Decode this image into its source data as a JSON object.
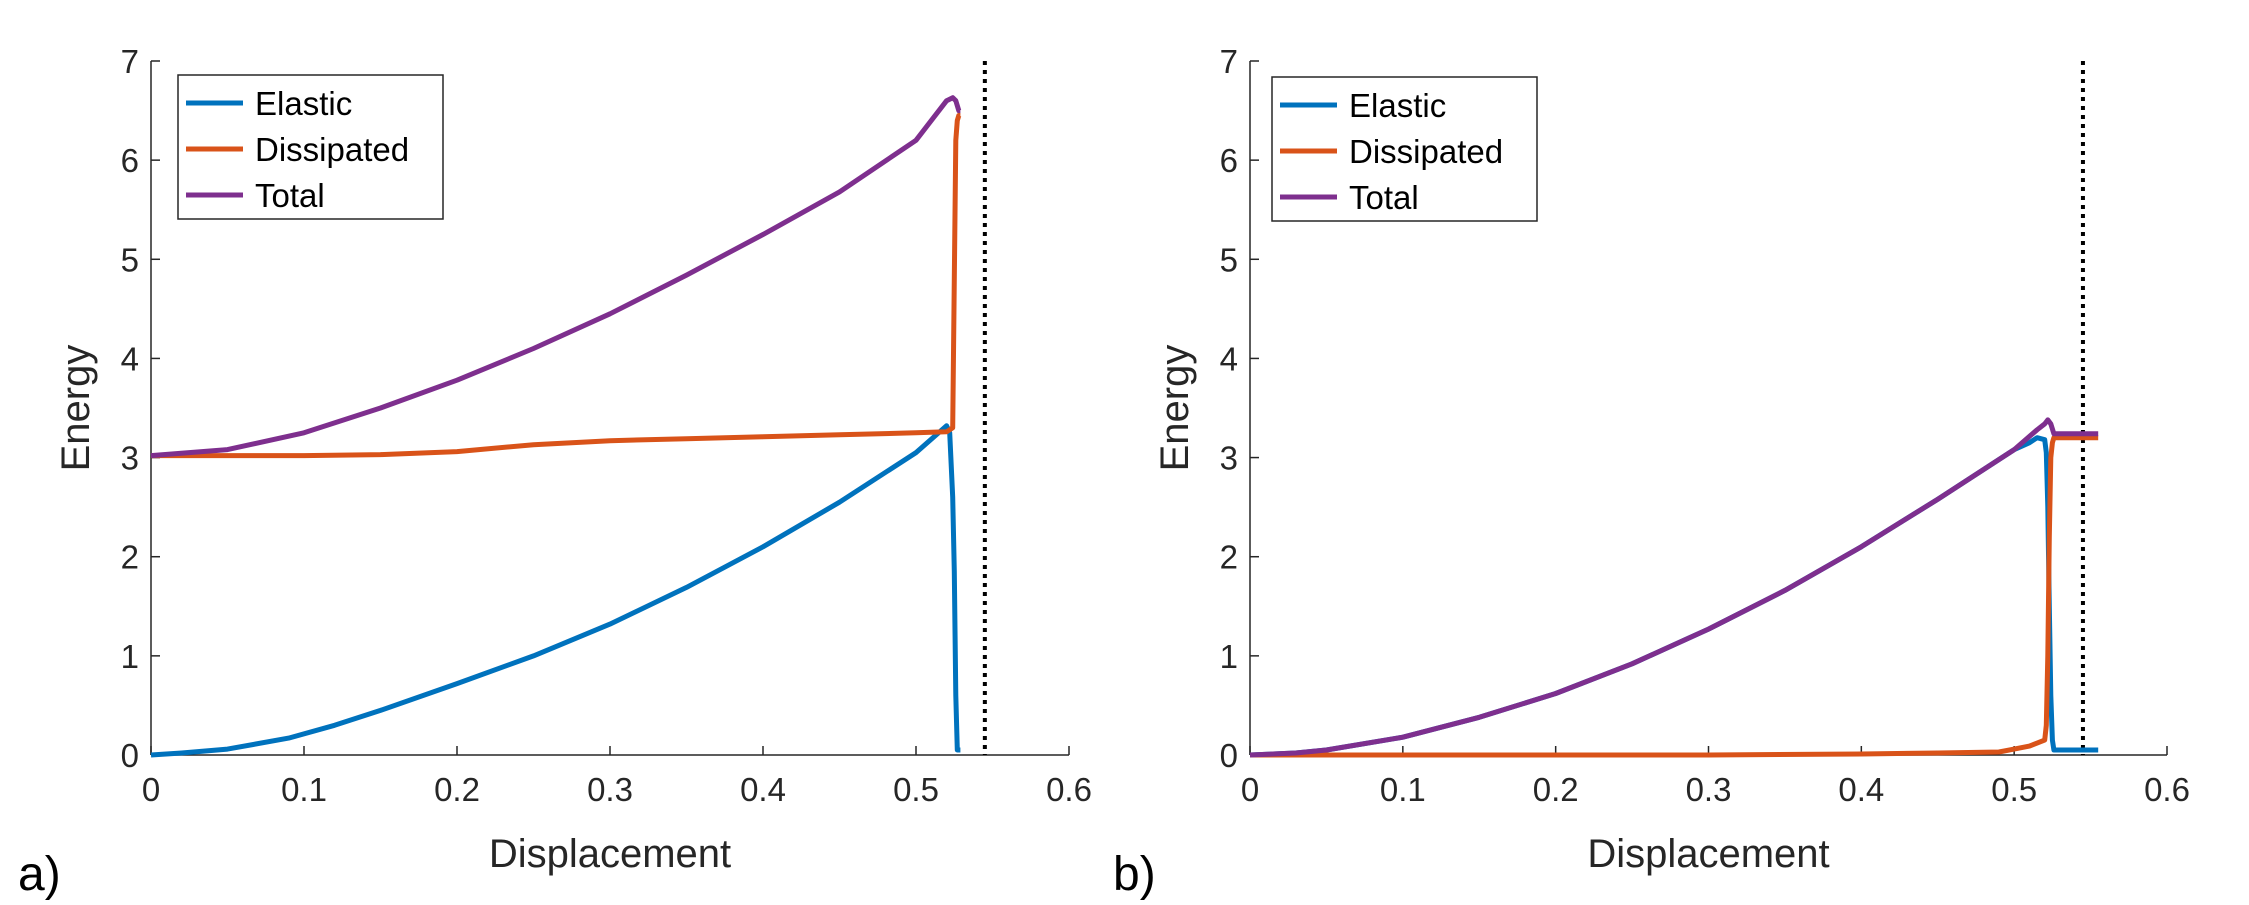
{
  "chart_data": [
    {
      "type": "line",
      "panel_label": "a)",
      "xlabel": "Displacement",
      "ylabel": "Energy",
      "xlim": [
        0,
        0.6
      ],
      "ylim": [
        0,
        7
      ],
      "xticks": [
        "0",
        "0.1",
        "0.2",
        "0.3",
        "0.4",
        "0.5",
        "0.6"
      ],
      "yticks": [
        "0",
        "1",
        "2",
        "3",
        "4",
        "5",
        "6",
        "7"
      ],
      "grid": false,
      "legend_position": "top-left",
      "reference_line": {
        "style": "dotted",
        "color": "#000000",
        "x": 0.545
      },
      "series": [
        {
          "name": "Elastic",
          "color": "#0072BD",
          "x": [
            0,
            0.02,
            0.05,
            0.09,
            0.12,
            0.15,
            0.2,
            0.25,
            0.3,
            0.35,
            0.4,
            0.45,
            0.5,
            0.52,
            0.522,
            0.524,
            0.525,
            0.526,
            0.527,
            0.529
          ],
          "y": [
            0,
            0.02,
            0.06,
            0.17,
            0.3,
            0.45,
            0.72,
            1.0,
            1.32,
            1.69,
            2.1,
            2.55,
            3.05,
            3.32,
            3.25,
            2.6,
            1.85,
            0.6,
            0.05,
            0.05
          ]
        },
        {
          "name": "Dissipated",
          "color": "#D95319",
          "x": [
            0,
            0.05,
            0.1,
            0.15,
            0.2,
            0.25,
            0.3,
            0.35,
            0.4,
            0.45,
            0.5,
            0.52,
            0.524,
            0.525,
            0.526,
            0.527,
            0.528,
            0.529
          ],
          "y": [
            3.02,
            3.02,
            3.02,
            3.03,
            3.06,
            3.13,
            3.17,
            3.19,
            3.21,
            3.23,
            3.25,
            3.26,
            3.3,
            4.8,
            6.2,
            6.4,
            6.45,
            6.45
          ]
        },
        {
          "name": "Total",
          "color": "#7E2F8E",
          "x": [
            0,
            0.05,
            0.1,
            0.15,
            0.2,
            0.25,
            0.3,
            0.35,
            0.4,
            0.45,
            0.5,
            0.52,
            0.524,
            0.526,
            0.528,
            0.529
          ],
          "y": [
            3.02,
            3.08,
            3.25,
            3.5,
            3.78,
            4.1,
            4.45,
            4.84,
            5.25,
            5.68,
            6.2,
            6.6,
            6.63,
            6.6,
            6.5,
            6.5
          ]
        }
      ]
    },
    {
      "type": "line",
      "panel_label": "b)",
      "xlabel": "Displacement",
      "ylabel": "Energy",
      "xlim": [
        0,
        0.6
      ],
      "ylim": [
        0,
        7
      ],
      "xticks": [
        "0",
        "0.1",
        "0.2",
        "0.3",
        "0.4",
        "0.5",
        "0.6"
      ],
      "yticks": [
        "0",
        "1",
        "2",
        "3",
        "4",
        "5",
        "6",
        "7"
      ],
      "grid": false,
      "legend_position": "top-left",
      "reference_line": {
        "style": "dotted",
        "color": "#000000",
        "x": 0.545
      },
      "series": [
        {
          "name": "Elastic",
          "color": "#0072BD",
          "x": [
            0,
            0.03,
            0.05,
            0.1,
            0.15,
            0.2,
            0.25,
            0.3,
            0.35,
            0.4,
            0.45,
            0.5,
            0.51,
            0.515,
            0.52,
            0.521,
            0.522,
            0.523,
            0.524,
            0.525,
            0.526,
            0.555
          ],
          "y": [
            0,
            0.02,
            0.05,
            0.18,
            0.38,
            0.62,
            0.92,
            1.27,
            1.66,
            2.1,
            2.58,
            3.08,
            3.15,
            3.2,
            3.18,
            3.05,
            2.5,
            1.5,
            0.6,
            0.15,
            0.05,
            0.05
          ]
        },
        {
          "name": "Dissipated",
          "color": "#D95319",
          "x": [
            0,
            0.1,
            0.2,
            0.3,
            0.4,
            0.45,
            0.49,
            0.5,
            0.51,
            0.515,
            0.52,
            0.521,
            0.522,
            0.523,
            0.524,
            0.525,
            0.526,
            0.555
          ],
          "y": [
            0,
            0,
            0,
            0,
            0.01,
            0.02,
            0.03,
            0.06,
            0.09,
            0.12,
            0.15,
            0.3,
            1.0,
            2.2,
            3.0,
            3.15,
            3.2,
            3.2
          ]
        },
        {
          "name": "Total",
          "color": "#7E2F8E",
          "x": [
            0,
            0.03,
            0.05,
            0.1,
            0.15,
            0.2,
            0.25,
            0.3,
            0.35,
            0.4,
            0.45,
            0.5,
            0.515,
            0.52,
            0.522,
            0.524,
            0.526,
            0.555
          ],
          "y": [
            0,
            0.02,
            0.05,
            0.18,
            0.38,
            0.62,
            0.92,
            1.27,
            1.66,
            2.1,
            2.58,
            3.08,
            3.28,
            3.34,
            3.38,
            3.34,
            3.24,
            3.24
          ]
        }
      ]
    }
  ]
}
